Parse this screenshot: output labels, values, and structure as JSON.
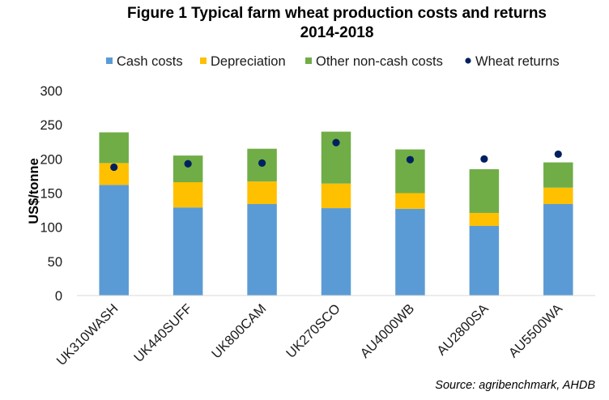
{
  "chart_data": {
    "type": "bar",
    "stacked": true,
    "title": "Figure 1 Typical farm wheat production costs and returns",
    "subtitle": "2014-2018",
    "xlabel": "",
    "ylabel": "US$/tonne",
    "ylim": [
      0,
      300
    ],
    "yticks": [
      0,
      50,
      100,
      150,
      200,
      250,
      300
    ],
    "grid": false,
    "legend_position": "top",
    "categories": [
      "UK310WASH",
      "UK440SUFF",
      "UK800CAM",
      "UK270SCO",
      "AU4000WB",
      "AU2800SA",
      "AU5500WA"
    ],
    "series": [
      {
        "name": "Cash costs",
        "type": "bar",
        "color": "#5B9BD5",
        "values": [
          162,
          129,
          134,
          128,
          127,
          102,
          134
        ]
      },
      {
        "name": "Depreciation",
        "type": "bar",
        "color": "#FFC000",
        "values": [
          32,
          37,
          33,
          36,
          23,
          19,
          24
        ]
      },
      {
        "name": "Other non-cash costs",
        "type": "bar",
        "color": "#70AD47",
        "values": [
          45,
          39,
          48,
          76,
          64,
          64,
          37
        ]
      },
      {
        "name": "Wheat returns",
        "type": "scatter",
        "color": "#002060",
        "values": [
          188,
          193,
          194,
          224,
          199,
          200,
          207
        ]
      }
    ],
    "source": "Source: agribenchmark, AHDB"
  }
}
